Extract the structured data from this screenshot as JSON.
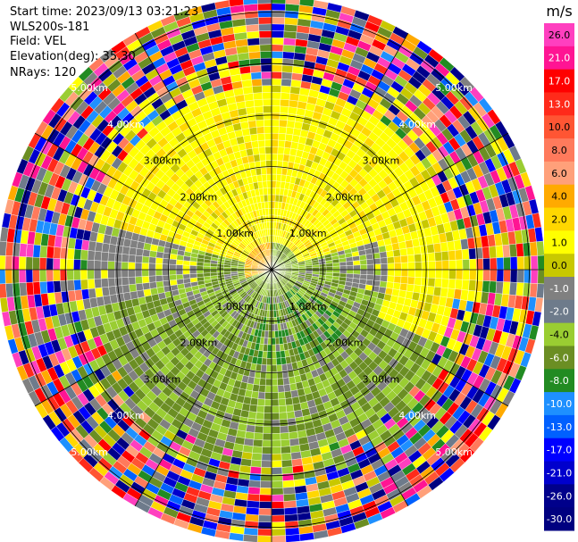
{
  "header": {
    "start_time": "Start time: 2023/09/13 03:21:23",
    "instrument": "WLS200s-181",
    "field": "Field: VEL",
    "elevation": "Elevation(deg): 35.30",
    "nrays": "NRays: 120"
  },
  "colorbar": {
    "unit": "m/s",
    "ticks": [
      "26.0",
      "21.0",
      "17.0",
      "13.0",
      "10.0",
      "8.0",
      "6.0",
      "4.0",
      "2.0",
      "1.0",
      "0.0",
      "-1.0",
      "-2.0",
      "-4.0",
      "-6.0",
      "-8.0",
      "-10.0",
      "-13.0",
      "-17.0",
      "-21.0",
      "-26.0",
      "-30.0"
    ],
    "colors": [
      "#ff3fbf",
      "#ff1493",
      "#ff0000",
      "#ff2a1a",
      "#ff5533",
      "#ff7a5c",
      "#ffa07a",
      "#ffaa00",
      "#ffd700",
      "#ffff00",
      "#c8c800",
      "#808080",
      "#6e7b8b",
      "#9acd32",
      "#6b8e23",
      "#228b22",
      "#1e90ff",
      "#0060ff",
      "#0000ff",
      "#0000cd",
      "#00008b",
      "#000080"
    ]
  },
  "chart_data": {
    "type": "ppi",
    "field": "VEL",
    "units": "m/s",
    "elevation_deg": 35.3,
    "nrays": 120,
    "range_ring_labels": [
      "1.00km",
      "2.00km",
      "3.00km",
      "4.00km",
      "5.00km"
    ],
    "range_rings_km": [
      1,
      2,
      3,
      4,
      5
    ],
    "max_range_km": 5.3,
    "spokes_deg": [
      0,
      30,
      60,
      90,
      120,
      150,
      180,
      210,
      240,
      270,
      300,
      330
    ],
    "value_range": [
      -30,
      26
    ]
  }
}
